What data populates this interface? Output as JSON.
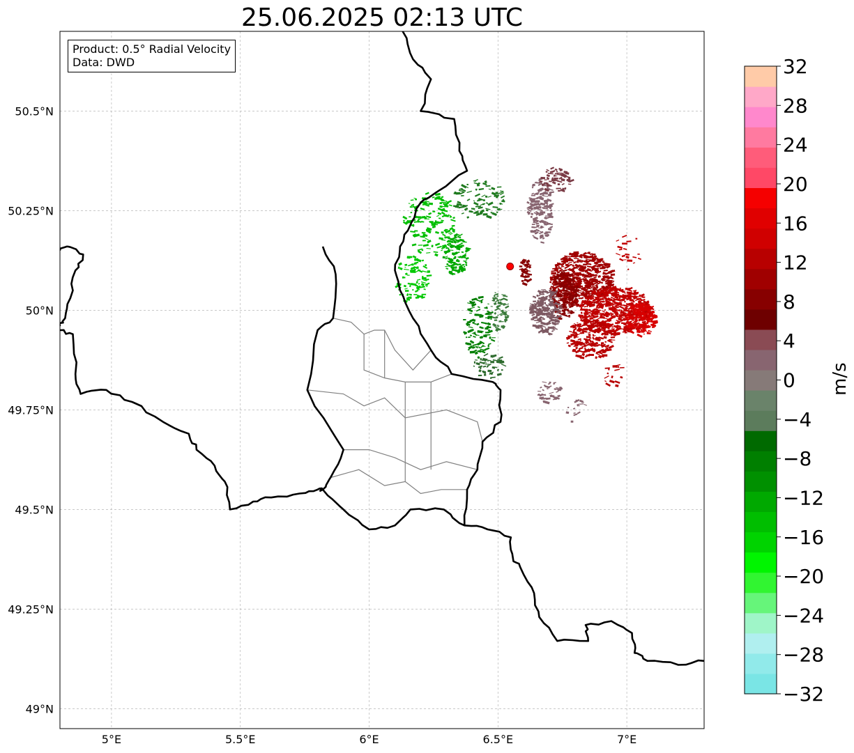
{
  "title": "25.06.2025 02:13 UTC",
  "info": {
    "product": "Product: 0.5° Radial Velocity",
    "data": "Data: DWD"
  },
  "map_extent": {
    "lon_min": 4.8,
    "lon_max": 7.3,
    "lat_min": 48.95,
    "lat_max": 50.7
  },
  "lat_ticks": [
    {
      "value": 50.5,
      "label": "50.5°N"
    },
    {
      "value": 50.25,
      "label": "50.25°N"
    },
    {
      "value": 50.0,
      "label": "50°N"
    },
    {
      "value": 49.75,
      "label": "49.75°N"
    },
    {
      "value": 49.5,
      "label": "49.5°N"
    },
    {
      "value": 49.25,
      "label": "49.25°N"
    },
    {
      "value": 49.0,
      "label": "49°N"
    }
  ],
  "lon_ticks": [
    {
      "value": 5.0,
      "label": "5°E"
    },
    {
      "value": 5.5,
      "label": "5.5°E"
    },
    {
      "value": 6.0,
      "label": "6°E"
    },
    {
      "value": 6.5,
      "label": "6.5°E"
    },
    {
      "value": 7.0,
      "label": "7°E"
    }
  ],
  "radar_site": {
    "lon": 6.547,
    "lat": 50.11,
    "color": "#ff0000"
  },
  "borders": [
    [
      [
        6.13,
        50.7
      ],
      [
        6.17,
        50.63
      ],
      [
        6.24,
        50.58
      ],
      [
        6.2,
        50.5
      ],
      [
        6.33,
        50.48
      ],
      [
        6.35,
        50.4
      ],
      [
        6.38,
        50.35
      ],
      [
        6.27,
        50.3
      ],
      [
        6.2,
        50.27
      ],
      [
        6.15,
        50.2
      ],
      [
        6.12,
        50.16
      ],
      [
        6.1,
        50.1
      ],
      [
        6.12,
        50.05
      ],
      [
        6.17,
        49.98
      ],
      [
        6.24,
        49.9
      ],
      [
        6.32,
        49.84
      ],
      [
        6.48,
        49.82
      ],
      [
        6.51,
        49.8
      ],
      [
        6.51,
        49.72
      ],
      [
        6.44,
        49.67
      ],
      [
        6.42,
        49.6
      ],
      [
        6.38,
        49.55
      ],
      [
        6.37,
        49.46
      ],
      [
        6.46,
        49.45
      ],
      [
        6.55,
        49.43
      ],
      [
        6.56,
        49.37
      ],
      [
        6.59,
        49.35
      ],
      [
        6.64,
        49.29
      ],
      [
        6.66,
        49.23
      ],
      [
        6.73,
        49.17
      ],
      [
        6.85,
        49.17
      ],
      [
        6.84,
        49.21
      ],
      [
        6.94,
        49.22
      ],
      [
        7.02,
        49.19
      ],
      [
        7.03,
        49.14
      ],
      [
        7.08,
        49.12
      ],
      [
        7.2,
        49.11
      ],
      [
        7.3,
        49.12
      ]
    ],
    [
      [
        5.82,
        50.16
      ],
      [
        5.87,
        50.09
      ],
      [
        5.86,
        49.98
      ],
      [
        5.8,
        49.95
      ],
      [
        5.76,
        49.8
      ],
      [
        5.9,
        49.65
      ],
      [
        5.85,
        49.58
      ],
      [
        5.82,
        49.55
      ],
      [
        5.9,
        49.5
      ],
      [
        6.0,
        49.45
      ],
      [
        6.1,
        49.46
      ],
      [
        6.16,
        49.5
      ],
      [
        6.29,
        49.5
      ],
      [
        6.37,
        49.46
      ]
    ],
    [
      [
        4.8,
        50.15
      ],
      [
        4.83,
        50.16
      ],
      [
        4.89,
        50.14
      ],
      [
        4.86,
        50.1
      ],
      [
        4.84,
        50.03
      ],
      [
        4.82,
        49.98
      ],
      [
        4.8,
        49.96
      ]
    ],
    [
      [
        4.8,
        49.95
      ],
      [
        4.85,
        49.94
      ],
      [
        4.86,
        49.84
      ],
      [
        4.88,
        49.79
      ],
      [
        4.98,
        49.8
      ],
      [
        5.08,
        49.77
      ],
      [
        5.2,
        49.72
      ],
      [
        5.3,
        49.69
      ],
      [
        5.33,
        49.65
      ],
      [
        5.4,
        49.61
      ],
      [
        5.44,
        49.57
      ],
      [
        5.46,
        49.5
      ],
      [
        5.55,
        49.52
      ],
      [
        5.62,
        49.53
      ],
      [
        5.73,
        49.54
      ],
      [
        5.8,
        49.55
      ],
      [
        5.82,
        49.55
      ]
    ]
  ],
  "admin_lines": [
    [
      [
        5.86,
        49.98
      ],
      [
        5.93,
        49.97
      ],
      [
        5.98,
        49.94
      ],
      [
        6.02,
        49.95
      ],
      [
        6.06,
        49.95
      ],
      [
        6.1,
        49.9
      ],
      [
        6.17,
        49.85
      ],
      [
        6.24,
        49.9
      ]
    ],
    [
      [
        5.98,
        49.94
      ],
      [
        5.98,
        49.85
      ],
      [
        6.06,
        49.83
      ],
      [
        6.14,
        49.82
      ],
      [
        6.24,
        49.82
      ],
      [
        6.32,
        49.84
      ]
    ],
    [
      [
        5.76,
        49.8
      ],
      [
        5.9,
        49.79
      ],
      [
        5.98,
        49.76
      ],
      [
        6.06,
        49.78
      ],
      [
        6.14,
        49.73
      ],
      [
        6.3,
        49.75
      ],
      [
        6.42,
        49.72
      ],
      [
        6.44,
        49.67
      ]
    ],
    [
      [
        5.9,
        49.65
      ],
      [
        6.0,
        49.65
      ],
      [
        6.1,
        49.63
      ],
      [
        6.2,
        49.6
      ],
      [
        6.3,
        49.62
      ],
      [
        6.42,
        49.6
      ]
    ],
    [
      [
        5.85,
        49.58
      ],
      [
        5.96,
        49.6
      ],
      [
        6.06,
        49.56
      ],
      [
        6.14,
        49.57
      ],
      [
        6.2,
        49.54
      ],
      [
        6.28,
        49.55
      ],
      [
        6.38,
        49.55
      ]
    ],
    [
      [
        6.06,
        49.95
      ],
      [
        6.06,
        49.83
      ]
    ],
    [
      [
        6.14,
        49.82
      ],
      [
        6.14,
        49.57
      ]
    ],
    [
      [
        6.24,
        49.82
      ],
      [
        6.24,
        49.6
      ]
    ]
  ],
  "colorbar": {
    "unit": "m/s",
    "min": -32,
    "max": 32,
    "tick_labels": [
      "32",
      "28",
      "24",
      "20",
      "16",
      "12",
      "8",
      "4",
      "0",
      "−4",
      "−8",
      "−12",
      "−16",
      "−20",
      "−24",
      "−28",
      "−32"
    ],
    "colors": [
      "#7ae5e5",
      "#91eaea",
      "#b0efef",
      "#9ff5c8",
      "#66f57a",
      "#31f531",
      "#00f500",
      "#00d300",
      "#00be00",
      "#00a900",
      "#009000",
      "#007f00",
      "#006a00",
      "#5c7c5c",
      "#6a836a",
      "#867a78",
      "#886570",
      "#8a4b54",
      "#6e0000",
      "#870000",
      "#a00000",
      "#b80000",
      "#d00000",
      "#e00000",
      "#f50000",
      "#ff4866",
      "#ff5c7a",
      "#ff7aa0",
      "#ff88cc",
      "#ffa8c8",
      "#ffcba8"
    ]
  },
  "velocity_clusters": [
    {
      "lon": 6.82,
      "lat": 50.08,
      "rx": 0.12,
      "ry": 0.07,
      "n": 520,
      "color": "#a00000"
    },
    {
      "lon": 6.95,
      "lat": 50.0,
      "rx": 0.14,
      "ry": 0.06,
      "n": 600,
      "color": "#c00000"
    },
    {
      "lon": 7.05,
      "lat": 49.98,
      "rx": 0.06,
      "ry": 0.04,
      "n": 160,
      "color": "#d80000"
    },
    {
      "lon": 6.85,
      "lat": 49.93,
      "rx": 0.09,
      "ry": 0.05,
      "n": 220,
      "color": "#b80000"
    },
    {
      "lon": 6.75,
      "lat": 50.04,
      "rx": 0.05,
      "ry": 0.06,
      "n": 180,
      "color": "#870000"
    },
    {
      "lon": 6.68,
      "lat": 50.0,
      "rx": 0.06,
      "ry": 0.06,
      "n": 200,
      "color": "#7e5a63"
    },
    {
      "lon": 6.66,
      "lat": 50.25,
      "rx": 0.05,
      "ry": 0.08,
      "n": 160,
      "color": "#886570"
    },
    {
      "lon": 6.72,
      "lat": 50.33,
      "rx": 0.06,
      "ry": 0.03,
      "n": 60,
      "color": "#7a3b45"
    },
    {
      "lon": 6.69,
      "lat": 49.8,
      "rx": 0.05,
      "ry": 0.03,
      "n": 40,
      "color": "#886570"
    },
    {
      "lon": 6.6,
      "lat": 50.1,
      "rx": 0.02,
      "ry": 0.03,
      "n": 40,
      "color": "#870000"
    },
    {
      "lon": 6.33,
      "lat": 50.14,
      "rx": 0.05,
      "ry": 0.05,
      "n": 120,
      "color": "#00a900"
    },
    {
      "lon": 6.23,
      "lat": 50.22,
      "rx": 0.1,
      "ry": 0.08,
      "n": 160,
      "color": "#00be00"
    },
    {
      "lon": 6.16,
      "lat": 50.08,
      "rx": 0.07,
      "ry": 0.06,
      "n": 80,
      "color": "#00c800"
    },
    {
      "lon": 6.42,
      "lat": 50.28,
      "rx": 0.1,
      "ry": 0.05,
      "n": 90,
      "color": "#1f7a1f"
    },
    {
      "lon": 6.42,
      "lat": 49.96,
      "rx": 0.06,
      "ry": 0.08,
      "n": 110,
      "color": "#007f00"
    },
    {
      "lon": 6.5,
      "lat": 50.0,
      "rx": 0.03,
      "ry": 0.05,
      "n": 60,
      "color": "#3a7a3a"
    },
    {
      "lon": 6.46,
      "lat": 49.86,
      "rx": 0.06,
      "ry": 0.03,
      "n": 50,
      "color": "#2e6b2e"
    },
    {
      "lon": 6.8,
      "lat": 49.75,
      "rx": 0.04,
      "ry": 0.03,
      "n": 16,
      "color": "#886570"
    },
    {
      "lon": 6.94,
      "lat": 49.84,
      "rx": 0.04,
      "ry": 0.03,
      "n": 18,
      "color": "#b80000"
    },
    {
      "lon": 7.0,
      "lat": 50.15,
      "rx": 0.05,
      "ry": 0.05,
      "n": 20,
      "color": "#c00000"
    }
  ]
}
